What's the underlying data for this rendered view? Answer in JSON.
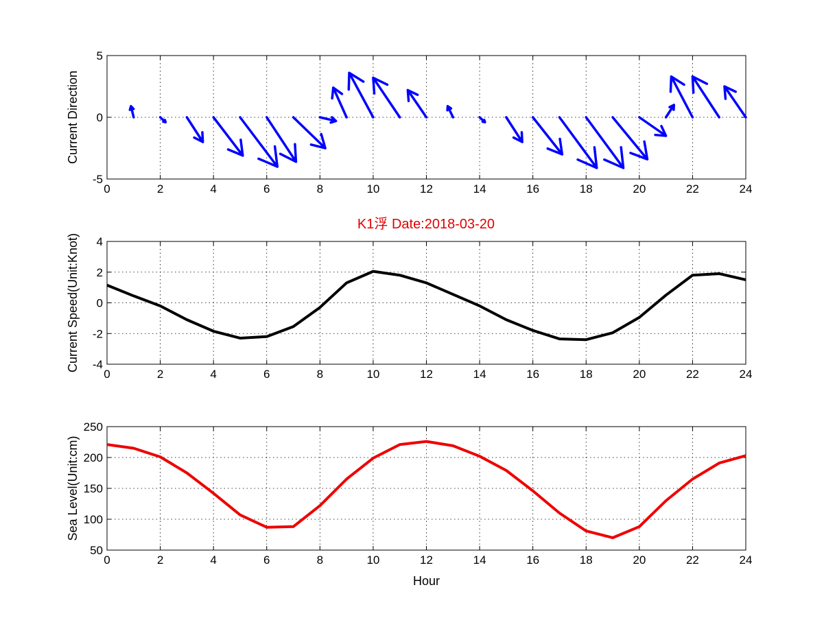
{
  "title": {
    "text": "K1浮    Date:2018-03-20",
    "color": "#e00000"
  },
  "chart_data": [
    {
      "type": "quiver",
      "ylabel": "Current Direction",
      "xlim": [
        0,
        24
      ],
      "ylim": [
        -5,
        5
      ],
      "xticks": [
        0,
        2,
        4,
        6,
        8,
        10,
        12,
        14,
        16,
        18,
        20,
        22,
        24
      ],
      "yticks": [
        -5,
        0,
        5
      ],
      "color": "#0000ff",
      "arrows": [
        {
          "x": 1,
          "u": -0.1,
          "v": 0.9
        },
        {
          "x": 2,
          "u": 0.2,
          "v": -0.4
        },
        {
          "x": 3,
          "u": 0.6,
          "v": -2.0
        },
        {
          "x": 4,
          "u": 1.1,
          "v": -3.1
        },
        {
          "x": 5,
          "u": 1.4,
          "v": -4.0
        },
        {
          "x": 6,
          "u": 1.1,
          "v": -3.6
        },
        {
          "x": 7,
          "u": 1.2,
          "v": -2.5
        },
        {
          "x": 8,
          "u": 0.6,
          "v": -0.3
        },
        {
          "x": 9,
          "u": -0.5,
          "v": 2.4
        },
        {
          "x": 10,
          "u": -0.9,
          "v": 3.6
        },
        {
          "x": 11,
          "u": -1.0,
          "v": 3.2
        },
        {
          "x": 12,
          "u": -0.7,
          "v": 2.2
        },
        {
          "x": 13,
          "u": -0.2,
          "v": 0.9
        },
        {
          "x": 14,
          "u": 0.2,
          "v": -0.4
        },
        {
          "x": 15,
          "u": 0.6,
          "v": -2.0
        },
        {
          "x": 16,
          "u": 1.1,
          "v": -3.0
        },
        {
          "x": 17,
          "u": 1.4,
          "v": -4.1
        },
        {
          "x": 18,
          "u": 1.4,
          "v": -4.1
        },
        {
          "x": 19,
          "u": 1.3,
          "v": -3.4
        },
        {
          "x": 20,
          "u": 1.0,
          "v": -1.5
        },
        {
          "x": 21,
          "u": 0.3,
          "v": 1.0
        },
        {
          "x": 22,
          "u": -0.8,
          "v": 3.3
        },
        {
          "x": 23,
          "u": -1.0,
          "v": 3.3
        },
        {
          "x": 24,
          "u": -0.8,
          "v": 2.5
        }
      ]
    },
    {
      "type": "line",
      "ylabel": "Current Speed(Unit:Knot)",
      "xlim": [
        0,
        24
      ],
      "ylim": [
        -4,
        4
      ],
      "xticks": [
        0,
        2,
        4,
        6,
        8,
        10,
        12,
        14,
        16,
        18,
        20,
        22,
        24
      ],
      "yticks": [
        -4,
        -2,
        0,
        2,
        4
      ],
      "color": "#000000",
      "x": [
        0,
        1,
        2,
        3,
        4,
        5,
        6,
        7,
        8,
        9,
        10,
        11,
        12,
        13,
        14,
        15,
        16,
        17,
        18,
        19,
        20,
        21,
        22,
        23,
        24
      ],
      "y": [
        1.15,
        0.45,
        -0.2,
        -1.1,
        -1.85,
        -2.3,
        -2.2,
        -1.55,
        -0.3,
        1.3,
        2.05,
        1.8,
        1.3,
        0.55,
        -0.2,
        -1.1,
        -1.8,
        -2.35,
        -2.4,
        -1.95,
        -0.95,
        0.5,
        1.8,
        1.9,
        1.5
      ]
    },
    {
      "type": "line",
      "ylabel": "Sea Level(Unit:cm)",
      "xlabel": "Hour",
      "xlim": [
        0,
        24
      ],
      "ylim": [
        50,
        250
      ],
      "xticks": [
        0,
        2,
        4,
        6,
        8,
        10,
        12,
        14,
        16,
        18,
        20,
        22,
        24
      ],
      "yticks": [
        50,
        100,
        150,
        200,
        250
      ],
      "color": "#ee0000",
      "x": [
        0,
        1,
        2,
        3,
        4,
        5,
        6,
        7,
        8,
        9,
        10,
        11,
        12,
        13,
        14,
        15,
        16,
        17,
        18,
        19,
        20,
        21,
        22,
        23,
        24
      ],
      "y": [
        221,
        215,
        201,
        175,
        142,
        107,
        87,
        88,
        122,
        165,
        199,
        221,
        226,
        219,
        202,
        179,
        146,
        110,
        81,
        70,
        88,
        130,
        165,
        191,
        203
      ]
    }
  ]
}
